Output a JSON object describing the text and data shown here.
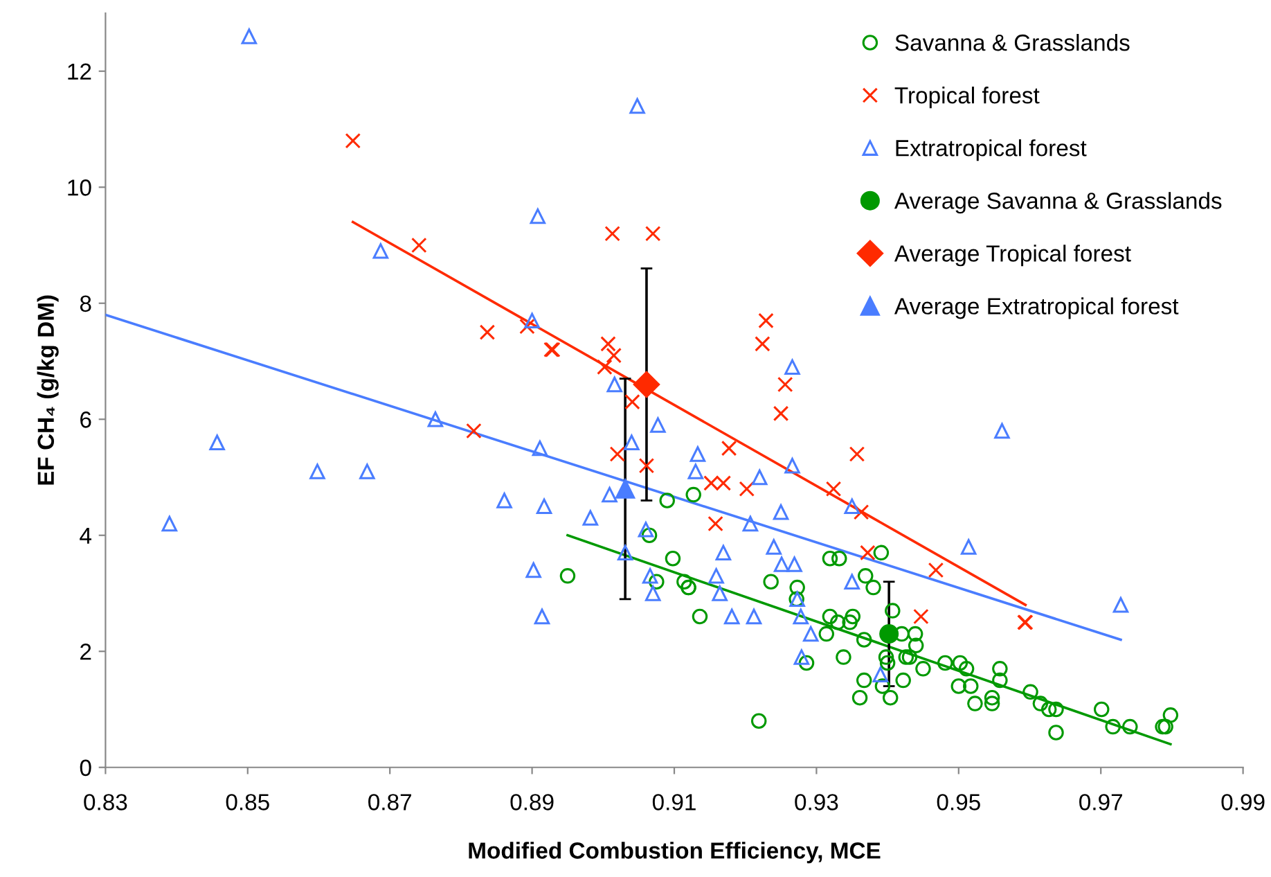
{
  "chart_data": {
    "type": "scatter",
    "xlabel": "Modified Combustion Efficiency, MCE",
    "ylabel": "EF CH₄ (g/kg DM)",
    "xlim": [
      0.83,
      0.99
    ],
    "xticks": [
      {
        "value": 0.83,
        "label": "0.83"
      },
      {
        "value": 0.85,
        "label": "0.85"
      },
      {
        "value": 0.87,
        "label": "0.87"
      },
      {
        "value": 0.89,
        "label": "0.89"
      },
      {
        "value": 0.91,
        "label": "0.91"
      },
      {
        "value": 0.93,
        "label": "0.93"
      },
      {
        "value": 0.95,
        "label": "0.95"
      },
      {
        "value": 0.97,
        "label": "0.97"
      },
      {
        "value": 0.99,
        "label": "0.99"
      }
    ],
    "ylim": [
      0,
      13
    ],
    "yticks": [
      0,
      2,
      4,
      6,
      8,
      10,
      12
    ],
    "grid": false,
    "legend": "top right",
    "series": [
      {
        "name": "Savanna & Grasslands",
        "marker": "circle",
        "color": "#009900",
        "x": [
          0.895,
          0.909,
          0.9127,
          0.9065,
          0.9098,
          0.9075,
          0.9114,
          0.912,
          0.912,
          0.9136,
          0.9219,
          0.9236,
          0.9273,
          0.9272,
          0.9286,
          0.9319,
          0.9332,
          0.9391,
          0.9369,
          0.938,
          0.9319,
          0.9314,
          0.933,
          0.9347,
          0.9351,
          0.9338,
          0.9367,
          0.9367,
          0.9361,
          0.9393,
          0.9404,
          0.9422,
          0.9407,
          0.942,
          0.9439,
          0.944,
          0.9426,
          0.9431,
          0.9398,
          0.94,
          0.945,
          0.9481,
          0.9502,
          0.9511,
          0.95,
          0.9517,
          0.9523,
          0.9547,
          0.9547,
          0.9558,
          0.9558,
          0.9601,
          0.9615,
          0.9627,
          0.9637,
          0.9637,
          0.9701,
          0.9717,
          0.9741,
          0.9787,
          0.9791,
          0.9798
        ],
        "values": [
          3.3,
          4.6,
          4.7,
          4.0,
          3.6,
          3.2,
          3.2,
          3.1,
          3.1,
          2.6,
          0.8,
          3.2,
          3.1,
          2.9,
          1.8,
          3.6,
          3.6,
          3.7,
          3.3,
          3.1,
          2.6,
          2.3,
          2.5,
          2.5,
          2.6,
          1.9,
          2.2,
          1.5,
          1.2,
          1.4,
          1.2,
          1.5,
          2.7,
          2.3,
          2.3,
          2.1,
          1.9,
          1.9,
          1.9,
          1.8,
          1.7,
          1.8,
          1.8,
          1.7,
          1.4,
          1.4,
          1.1,
          1.2,
          1.1,
          1.7,
          1.5,
          1.3,
          1.1,
          1.0,
          1.0,
          0.6,
          1.0,
          0.7,
          0.7,
          0.7,
          0.7,
          0.9
        ]
      },
      {
        "name": "Tropical forest",
        "marker": "cross",
        "color": "#ff2a00",
        "x": [
          0.8648,
          0.8741,
          0.8837,
          0.8818,
          0.9013,
          0.907,
          0.8893,
          0.8927,
          0.8929,
          0.9007,
          0.9015,
          0.9002,
          0.9041,
          0.9229,
          0.9224,
          0.9256,
          0.925,
          0.902,
          0.9061,
          0.9177,
          0.9152,
          0.9169,
          0.9202,
          0.9158,
          0.9357,
          0.9324,
          0.9363,
          0.9372,
          0.9447,
          0.9468,
          0.9593,
          0.9594
        ],
        "values": [
          10.8,
          9.0,
          7.5,
          5.8,
          9.2,
          9.2,
          7.6,
          7.2,
          7.2,
          7.3,
          7.1,
          6.9,
          6.3,
          7.7,
          7.3,
          6.6,
          6.1,
          5.4,
          5.2,
          5.5,
          4.9,
          4.9,
          4.8,
          4.2,
          5.4,
          4.8,
          4.4,
          3.7,
          2.6,
          3.4,
          2.5,
          2.5
        ]
      },
      {
        "name": "Extratropical forest",
        "marker": "triangle",
        "color": "#4a7dff",
        "x": [
          0.8502,
          0.9048,
          0.8908,
          0.8687,
          0.89,
          0.9266,
          0.9016,
          0.8764,
          0.8457,
          0.8598,
          0.8668,
          0.8911,
          0.904,
          0.9077,
          0.9133,
          0.913,
          0.922,
          0.839,
          0.8861,
          0.8917,
          0.8982,
          0.9009,
          0.906,
          0.9207,
          0.925,
          0.9266,
          0.935,
          0.935,
          0.9169,
          0.924,
          0.9251,
          0.9269,
          0.9159,
          0.9066,
          0.907,
          0.9164,
          0.9031,
          0.8902,
          0.8914,
          0.9181,
          0.9212,
          0.9273,
          0.9278,
          0.9292,
          0.9279,
          0.939,
          0.9561,
          0.9514,
          0.9728
        ],
        "values": [
          12.6,
          11.4,
          9.5,
          8.9,
          7.7,
          6.9,
          6.6,
          6.0,
          5.6,
          5.1,
          5.1,
          5.5,
          5.6,
          5.9,
          5.4,
          5.1,
          5.0,
          4.2,
          4.6,
          4.5,
          4.3,
          4.7,
          4.1,
          4.2,
          4.4,
          5.2,
          4.5,
          3.2,
          3.7,
          3.8,
          3.5,
          3.5,
          3.3,
          3.3,
          3.0,
          3.0,
          3.7,
          3.4,
          2.6,
          2.6,
          2.6,
          2.9,
          2.6,
          2.3,
          1.9,
          1.6,
          5.8,
          3.8,
          2.8
        ]
      },
      {
        "name": "Average Savanna & Grasslands",
        "marker": "circle",
        "color": "#009900",
        "x": [
          0.9402
        ],
        "values": [
          2.3
        ],
        "errors": [
          0.9
        ]
      },
      {
        "name": "Average Tropical forest",
        "marker": "diamond",
        "color": "#ff2a00",
        "x": [
          0.9061
        ],
        "values": [
          6.6
        ],
        "errors": [
          2.0
        ]
      },
      {
        "name": "Average Extratropical forest",
        "marker": "triangle",
        "color": "#4a7dff",
        "x": [
          0.9031
        ],
        "values": [
          4.8
        ],
        "errors": [
          1.9
        ]
      },
      {
        "type": "line",
        "color": "#009900",
        "x": [
          0.895,
          0.9798
        ],
        "values": [
          4.0,
          0.4
        ]
      },
      {
        "type": "line",
        "color": "#ff2a00",
        "x": [
          0.8648,
          0.9594
        ],
        "values": [
          9.4,
          2.8
        ]
      },
      {
        "type": "line",
        "color": "#4a7dff",
        "x": [
          0.83,
          0.9728
        ],
        "values": [
          7.8,
          2.2
        ]
      }
    ]
  }
}
